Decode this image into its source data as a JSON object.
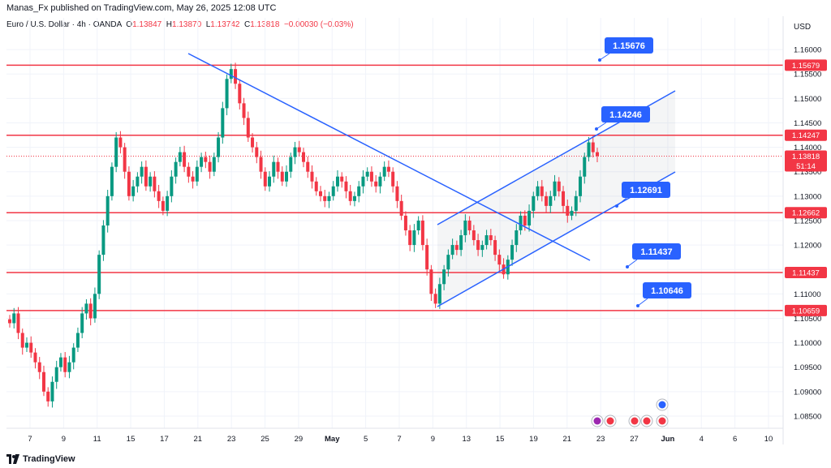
{
  "header": {
    "published": "Manas_Fx published on TradingView.com, May 26, 2025 12:08 UTC"
  },
  "legend": {
    "symbol": "Euro / U.S. Dollar · 4h · OANDA",
    "open_label": "O",
    "open": "1.13847",
    "high_label": "H",
    "high": "1.13870",
    "low_label": "L",
    "low": "1.13742",
    "close_label": "C",
    "close": "1.13818",
    "change": "−0.00030 (−0.03%)"
  },
  "currency": "USD",
  "footer": {
    "brand": "TradingView"
  },
  "colors": {
    "up": "#089981",
    "down": "#f23645",
    "level": "#f23645",
    "trend": "#2962ff",
    "callout": "#2962ff"
  },
  "chart_data": {
    "type": "candlestick",
    "ylim": [
      1.0825,
      1.1635
    ],
    "y_ticks": [
      "1.08500",
      "1.09000",
      "1.09500",
      "1.10000",
      "1.10500",
      "1.11000",
      "1.11500",
      "1.12000",
      "1.12500",
      "1.13000",
      "1.13500",
      "1.14000",
      "1.14500",
      "1.15000",
      "1.15500",
      "1.16000"
    ],
    "x_ticks": [
      "7",
      "9",
      "11",
      "15",
      "17",
      "21",
      "23",
      "25",
      "29",
      "May",
      "5",
      "7",
      "9",
      "13",
      "15",
      "19",
      "21",
      "23",
      "27",
      "Jun",
      "4",
      "6",
      "10"
    ],
    "horizontal_levels": [
      {
        "price": 1.15679,
        "label": "1.15679"
      },
      {
        "price": 1.14247,
        "label": "1.14247"
      },
      {
        "price": 1.12662,
        "label": "1.12662"
      },
      {
        "price": 1.11437,
        "label": "1.11437"
      },
      {
        "price": 1.10659,
        "label": "1.10659"
      }
    ],
    "callouts": [
      "1.15676",
      "1.14246",
      "1.12691",
      "1.11437",
      "1.10646"
    ],
    "last_price": {
      "price": 1.13818,
      "label": "1.13818",
      "countdown": "51:14"
    },
    "closes": [
      1.104,
      1.106,
      1.102,
      1.099,
      1.1,
      1.098,
      1.096,
      1.094,
      1.09,
      1.088,
      1.092,
      1.095,
      1.097,
      1.094,
      1.096,
      1.099,
      1.102,
      1.106,
      1.108,
      1.105,
      1.11,
      1.118,
      1.124,
      1.13,
      1.136,
      1.142,
      1.14,
      1.135,
      1.13,
      1.132,
      1.134,
      1.136,
      1.132,
      1.134,
      1.131,
      1.129,
      1.127,
      1.13,
      1.134,
      1.137,
      1.139,
      1.136,
      1.134,
      1.133,
      1.136,
      1.138,
      1.137,
      1.135,
      1.138,
      1.142,
      1.148,
      1.154,
      1.156,
      1.153,
      1.149,
      1.146,
      1.142,
      1.14,
      1.138,
      1.135,
      1.132,
      1.134,
      1.137,
      1.135,
      1.133,
      1.135,
      1.138,
      1.14,
      1.139,
      1.137,
      1.135,
      1.133,
      1.131,
      1.13,
      1.129,
      1.13,
      1.132,
      1.134,
      1.133,
      1.131,
      1.129,
      1.13,
      1.132,
      1.134,
      1.135,
      1.133,
      1.132,
      1.134,
      1.136,
      1.135,
      1.132,
      1.129,
      1.126,
      1.123,
      1.12,
      1.123,
      1.125,
      1.12,
      1.115,
      1.11,
      1.108,
      1.112,
      1.115,
      1.118,
      1.12,
      1.119,
      1.122,
      1.125,
      1.123,
      1.121,
      1.119,
      1.12,
      1.122,
      1.121,
      1.118,
      1.116,
      1.114,
      1.117,
      1.12,
      1.123,
      1.126,
      1.124,
      1.127,
      1.13,
      1.132,
      1.13,
      1.128,
      1.13,
      1.133,
      1.131,
      1.128,
      1.126,
      1.127,
      1.13,
      1.134,
      1.138,
      1.141,
      1.139,
      1.1382
    ]
  }
}
